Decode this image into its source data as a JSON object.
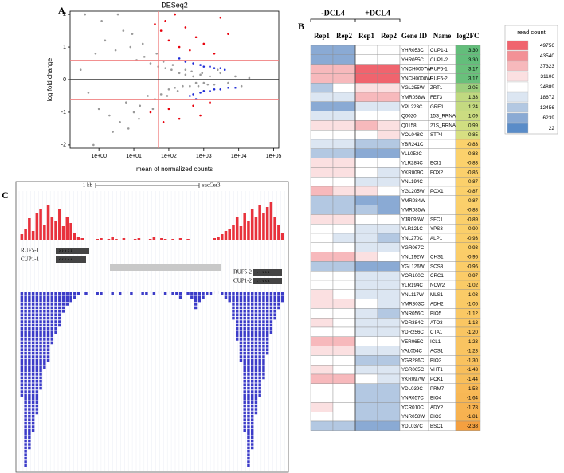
{
  "panel_a": {
    "label": "A",
    "chart_data": {
      "type": "scatter",
      "title": "DESeq2",
      "x_label": "mean of normalized counts",
      "y_label": "log fold change",
      "log_x": true,
      "xlim": [
        0.15,
        140000
      ],
      "ylim": [
        -2.1,
        2.1
      ],
      "xticks": [
        {
          "value": 1,
          "label": "1e+00"
        },
        {
          "value": 10,
          "label": "1e+01"
        },
        {
          "value": 100,
          "label": "1e+02"
        },
        {
          "value": 1000,
          "label": "1e+03"
        },
        {
          "value": 10000,
          "label": "1e+04"
        },
        {
          "value": 100000,
          "label": "1e+05"
        }
      ],
      "yticks": [
        -2,
        -1,
        0,
        1,
        2
      ],
      "hlines": [
        -0.6,
        0.6
      ],
      "vlines": [
        50
      ],
      "zero_line": 0,
      "threshold_color": "#f08080",
      "series": [
        {
          "color": "#9a9a9a",
          "x": [
            0.3,
            0.5,
            0.8,
            1,
            1.5,
            2,
            3,
            4,
            5,
            6,
            8,
            10,
            12,
            15,
            20,
            25,
            30,
            40,
            50,
            60,
            80,
            100,
            120,
            150,
            200,
            250,
            300,
            400,
            500,
            600,
            800,
            1000,
            1500,
            2000,
            3000,
            5000,
            8000,
            12000,
            20000,
            0.4,
            0.7,
            1.2,
            2.5,
            3.5,
            7,
            9,
            14,
            18,
            35,
            45,
            70,
            90,
            130,
            180,
            300,
            450,
            700,
            900,
            1300,
            2500
          ],
          "y": [
            0.3,
            -0.4,
            0.8,
            -0.9,
            1.2,
            -1.1,
            0.9,
            -1.3,
            1.5,
            -0.7,
            1.0,
            -1.0,
            0.6,
            -0.8,
            0.7,
            -0.5,
            0.5,
            -0.6,
            0.4,
            -0.45,
            0.35,
            -0.3,
            0.3,
            -0.25,
            0.2,
            -0.2,
            0.15,
            -0.2,
            0.1,
            -0.1,
            0.15,
            -0.1,
            0.1,
            -0.15,
            0.2,
            -0.1,
            0.1,
            -0.2,
            0.05,
            2,
            -2,
            1.8,
            -1.6,
            2,
            -1.5,
            1.4,
            -1.2,
            1.1,
            -0.9,
            0.8,
            0.55,
            -0.5,
            0.45,
            -0.35,
            0.3,
            0.25,
            -0.2,
            0.2,
            -0.15,
            0.3
          ]
        },
        {
          "color": "#e8000b",
          "x": [
            60,
            80,
            100,
            150,
            200,
            300,
            400,
            600,
            1000,
            2000,
            3000,
            5000,
            100,
            200,
            500,
            800,
            1500,
            30,
            40,
            70
          ],
          "y": [
            1.5,
            1.8,
            1.2,
            2,
            1.0,
            1.6,
            0.9,
            1.3,
            1.1,
            0.8,
            1.9,
            1.4,
            -0.9,
            -1.2,
            -0.8,
            -1.1,
            -0.7,
            -1.0,
            1.7,
            -1.3
          ]
        },
        {
          "color": "#1f2bd6",
          "x": [
            300,
            500,
            800,
            1000,
            1500,
            2000,
            3000,
            4000,
            500,
            800,
            1000,
            1500,
            2000,
            3000,
            5000,
            8000,
            200,
            400,
            600
          ],
          "y": [
            0.55,
            0.5,
            0.45,
            0.4,
            0.4,
            0.35,
            0.35,
            0.3,
            -0.45,
            -0.4,
            -0.35,
            -0.35,
            -0.3,
            -0.3,
            -0.25,
            -0.25,
            0.65,
            -0.5,
            -0.6
          ]
        }
      ]
    }
  },
  "panel_b": {
    "label": "B",
    "group_headers": [
      "-DCL4",
      "+DCL4"
    ],
    "columns": [
      "Rep1",
      "Rep2",
      "Rep1",
      "Rep2",
      "Gene ID",
      "Name",
      "log2FC"
    ],
    "rows": [
      {
        "gene_id": "YHR053C",
        "name": "CUP1-1",
        "log2fc": "3.30",
        "counts": [
          6239,
          6239,
          24889,
          24889
        ]
      },
      {
        "gene_id": "YHR055C",
        "name": "CUP1-2",
        "log2fc": "3.30",
        "counts": [
          6239,
          6239,
          24889,
          24889
        ]
      },
      {
        "gene_id": "YNCH0007W",
        "name": "RUF5-1",
        "log2fc": "3.17",
        "counts": [
          37323,
          37323,
          49756,
          49756
        ]
      },
      {
        "gene_id": "YNCH0008W",
        "name": "RUF5-2",
        "log2fc": "3.17",
        "counts": [
          37323,
          37323,
          49756,
          49756
        ]
      },
      {
        "gene_id": "YGL255W",
        "name": "ZRT1",
        "log2fc": "2.05",
        "counts": [
          12456,
          24889,
          31106,
          31106
        ]
      },
      {
        "gene_id": "YMR058W",
        "name": "FET3",
        "log2fc": "1.33",
        "counts": [
          18672,
          18672,
          37323,
          37323
        ]
      },
      {
        "gene_id": "YPL223C",
        "name": "GRE1",
        "log2fc": "1.24",
        "counts": [
          6239,
          6239,
          18672,
          18672
        ]
      },
      {
        "gene_id": "Q0020",
        "name": "15S_RRNA",
        "log2fc": "1.09",
        "counts": [
          18672,
          18672,
          24889,
          24889
        ]
      },
      {
        "gene_id": "Q0158",
        "name": "21S_RRNA",
        "log2fc": "0.99",
        "counts": [
          31106,
          31106,
          37323,
          31106
        ]
      },
      {
        "gene_id": "YOL048C",
        "name": "STP4",
        "log2fc": "0.85",
        "counts": [
          24889,
          24889,
          24889,
          31106
        ]
      },
      {
        "gene_id": "YBR241C",
        "name": null,
        "log2fc": "-0.83",
        "counts": [
          18672,
          18672,
          12456,
          12456
        ]
      },
      {
        "gene_id": "YLL053C",
        "name": null,
        "log2fc": "-0.83",
        "counts": [
          12456,
          12456,
          6239,
          6239
        ]
      },
      {
        "gene_id": "YLR284C",
        "name": "ECI1",
        "log2fc": "-0.83",
        "counts": [
          31106,
          31106,
          24889,
          24889
        ]
      },
      {
        "gene_id": "YKR009C",
        "name": "FOX2",
        "log2fc": "-0.85",
        "counts": [
          31106,
          31106,
          24889,
          18672
        ]
      },
      {
        "gene_id": "YNL194C",
        "name": null,
        "log2fc": "-0.87",
        "counts": [
          24889,
          24889,
          18672,
          18672
        ]
      },
      {
        "gene_id": "YGL205W",
        "name": "POX1",
        "log2fc": "-0.87",
        "counts": [
          37323,
          31106,
          31106,
          24889
        ]
      },
      {
        "gene_id": "YMR084W",
        "name": null,
        "log2fc": "-0.87",
        "counts": [
          12456,
          12456,
          6239,
          6239
        ]
      },
      {
        "gene_id": "YMR085W",
        "name": null,
        "log2fc": "-0.88",
        "counts": [
          12456,
          12456,
          12456,
          6239
        ]
      },
      {
        "gene_id": "YJR095W",
        "name": "SFC1",
        "log2fc": "-0.89",
        "counts": [
          31106,
          31106,
          24889,
          24889
        ]
      },
      {
        "gene_id": "YLR121C",
        "name": "YPS3",
        "log2fc": "-0.90",
        "counts": [
          24889,
          24889,
          18672,
          18672
        ]
      },
      {
        "gene_id": "YNL270C",
        "name": "ALP1",
        "log2fc": "-0.93",
        "counts": [
          24889,
          18672,
          18672,
          12456
        ]
      },
      {
        "gene_id": "YGR067C",
        "name": null,
        "log2fc": "-0.93",
        "counts": [
          24889,
          24889,
          18672,
          18672
        ]
      },
      {
        "gene_id": "YNL192W",
        "name": "CHS1",
        "log2fc": "-0.96",
        "counts": [
          37323,
          37323,
          31106,
          24889
        ]
      },
      {
        "gene_id": "YGL126W",
        "name": "SCS3",
        "log2fc": "-0.96",
        "counts": [
          12456,
          12456,
          6239,
          6239
        ]
      },
      {
        "gene_id": "YOR100C",
        "name": "CRC1",
        "log2fc": "-0.97",
        "counts": [
          24889,
          24889,
          18672,
          18672
        ]
      },
      {
        "gene_id": "YLR194C",
        "name": "NCW2",
        "log2fc": "-1.02",
        "counts": [
          24889,
          24889,
          18672,
          18672
        ]
      },
      {
        "gene_id": "YNL117W",
        "name": "MLS1",
        "log2fc": "-1.03",
        "counts": [
          31106,
          24889,
          18672,
          18672
        ]
      },
      {
        "gene_id": "YMR303C",
        "name": "ADH2",
        "log2fc": "-1.05",
        "counts": [
          31106,
          31106,
          24889,
          18672
        ]
      },
      {
        "gene_id": "YNR056C",
        "name": "BIO5",
        "log2fc": "-1.12",
        "counts": [
          24889,
          24889,
          18672,
          12456
        ]
      },
      {
        "gene_id": "YDR384C",
        "name": "ATO3",
        "log2fc": "-1.18",
        "counts": [
          31106,
          24889,
          18672,
          18672
        ]
      },
      {
        "gene_id": "YDR256C",
        "name": "CTA1",
        "log2fc": "-1.20",
        "counts": [
          24889,
          24889,
          18672,
          18672
        ]
      },
      {
        "gene_id": "YER065C",
        "name": "ICL1",
        "log2fc": "-1.23",
        "counts": [
          37323,
          37323,
          24889,
          24889
        ]
      },
      {
        "gene_id": "YAL054C",
        "name": "ACS1",
        "log2fc": "-1.23",
        "counts": [
          31106,
          31106,
          18672,
          18672
        ]
      },
      {
        "gene_id": "YGR286C",
        "name": "BIO2",
        "log2fc": "-1.30",
        "counts": [
          24889,
          24889,
          12456,
          12456
        ]
      },
      {
        "gene_id": "YGR065C",
        "name": "VHT1",
        "log2fc": "-1.43",
        "counts": [
          31106,
          24889,
          18672,
          18672
        ]
      },
      {
        "gene_id": "YKR097W",
        "name": "PCK1",
        "log2fc": "-1.44",
        "counts": [
          37323,
          37323,
          24889,
          18672
        ]
      },
      {
        "gene_id": "YDL039C",
        "name": "PRM7",
        "log2fc": "-1.58",
        "counts": [
          24889,
          24889,
          12456,
          12456
        ]
      },
      {
        "gene_id": "YNR057C",
        "name": "BIO4",
        "log2fc": "-1.64",
        "counts": [
          24889,
          24889,
          12456,
          12456
        ]
      },
      {
        "gene_id": "YCR010C",
        "name": "ADY2",
        "log2fc": "-1.78",
        "counts": [
          31106,
          24889,
          12456,
          12456
        ]
      },
      {
        "gene_id": "YNR058W",
        "name": "BIO3",
        "log2fc": "-1.81",
        "counts": [
          24889,
          24889,
          12456,
          12456
        ]
      },
      {
        "gene_id": "YDL037C",
        "name": "BSC1",
        "log2fc": "-2.38",
        "counts": [
          12456,
          12456,
          6239,
          6239
        ]
      }
    ],
    "legend": {
      "title": "read count",
      "entries": [
        {
          "value": 49756,
          "color": "#f0646e"
        },
        {
          "value": 43540,
          "color": "#f39196"
        },
        {
          "value": 37323,
          "color": "#f7b9bc"
        },
        {
          "value": 31106,
          "color": "#fbe0e1"
        },
        {
          "value": 24889,
          "color": "#ffffff"
        },
        {
          "value": 18672,
          "color": "#dce6f2"
        },
        {
          "value": 12456,
          "color": "#b3c8e2"
        },
        {
          "value": 6239,
          "color": "#8aaad4"
        },
        {
          "value": 22,
          "color": "#5a8cc8"
        }
      ]
    }
  },
  "panel_c": {
    "label": "C",
    "scale_label": "1 kb",
    "assembly": "sacCer3",
    "genes": [
      "RUF5-1",
      "CUP1-1",
      "RUF5-2",
      "CUP1-2"
    ],
    "plus_strand": {
      "color": "#e8323c",
      "values": [
        8,
        15,
        28,
        12,
        35,
        40,
        20,
        45,
        30,
        25,
        40,
        18,
        30,
        22,
        10,
        5,
        3,
        0,
        0,
        0,
        2,
        3,
        0,
        2,
        4,
        2,
        0,
        3,
        0,
        0,
        2,
        3,
        0,
        0,
        2,
        4,
        0,
        3,
        2,
        0,
        2,
        0,
        3,
        0,
        2,
        0,
        0,
        0,
        0,
        0,
        0,
        3,
        5,
        8,
        12,
        15,
        20,
        30,
        18,
        35,
        25,
        40,
        30,
        45,
        35,
        42,
        48,
        30,
        20,
        10
      ]
    },
    "minus_strand": {
      "color": "#3c3cc8",
      "values": [
        30,
        50,
        45,
        40,
        35,
        28,
        22,
        20,
        15,
        12,
        10,
        6,
        4,
        3,
        2,
        1,
        0,
        1,
        0,
        0,
        1,
        1,
        0,
        0,
        1,
        0,
        1,
        0,
        0,
        1,
        0,
        0,
        1,
        1,
        0,
        1,
        0,
        0,
        1,
        0,
        1,
        1,
        2,
        0,
        1,
        2,
        5,
        3,
        2,
        1,
        1,
        0,
        0,
        1,
        2,
        3,
        8,
        14,
        20,
        40,
        50,
        45,
        35,
        30,
        25,
        18,
        12,
        8,
        5,
        3
      ]
    }
  }
}
